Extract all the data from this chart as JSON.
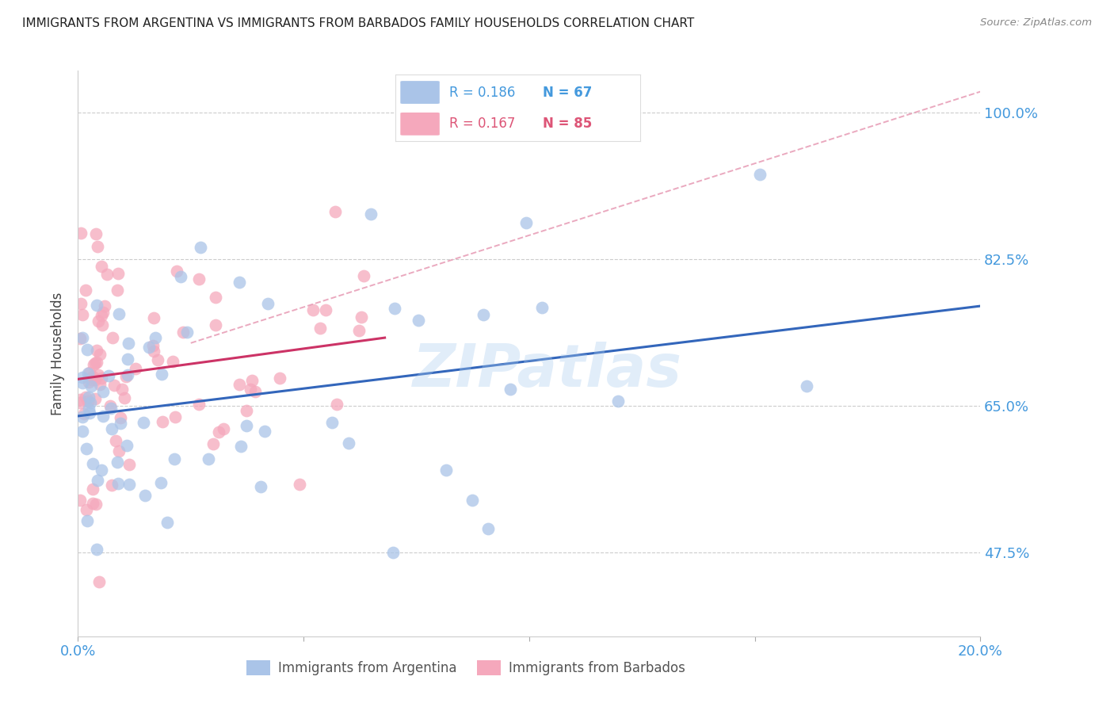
{
  "title": "IMMIGRANTS FROM ARGENTINA VS IMMIGRANTS FROM BARBADOS FAMILY HOUSEHOLDS CORRELATION CHART",
  "source": "Source: ZipAtlas.com",
  "ylabel": "Family Households",
  "argentina": {
    "R": 0.186,
    "N": 67,
    "color": "#aac4e8",
    "line_color": "#3366bb",
    "seed": 42
  },
  "barbados": {
    "R": 0.167,
    "N": 85,
    "color": "#f5a8bc",
    "line_color": "#cc3366",
    "seed": 7
  },
  "xlim": [
    0.0,
    0.2
  ],
  "ylim": [
    0.375,
    1.05
  ],
  "yticks": [
    0.475,
    0.65,
    0.825,
    1.0
  ],
  "ytick_labels": [
    "47.5%",
    "65.0%",
    "82.5%",
    "100.0%"
  ],
  "xticks": [
    0.0,
    0.05,
    0.1,
    0.15,
    0.2
  ],
  "xtick_labels": [
    "0.0%",
    "",
    "",
    "",
    "20.0%"
  ],
  "grid_color": "#cccccc",
  "background_color": "#ffffff",
  "text_color": "#4499dd",
  "watermark": "ZIPatlas",
  "dashed_line_color": "#e8a0b8",
  "legend_R_arg": "R = 0.186",
  "legend_N_arg": "N = 67",
  "legend_R_bar": "R = 0.167",
  "legend_N_bar": "N = 85",
  "legend_label_arg": "Immigrants from Argentina",
  "legend_label_bar": "Immigrants from Barbados"
}
